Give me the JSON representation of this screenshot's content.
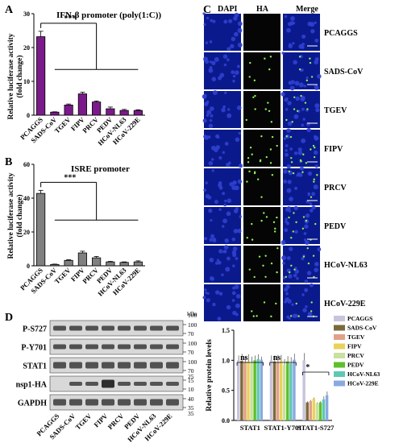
{
  "panels": {
    "A": "A",
    "B": "B",
    "C": "C",
    "D": "D"
  },
  "chart_data": [
    {
      "type": "bar",
      "title": "IFN-β promoter (poly(1:C))",
      "ylabel": "Relative luciferase activity (fold change)",
      "ylabel_lines": [
        "Relative luciferase activity",
        "(fold change)"
      ],
      "categories": [
        "PCAGGS",
        "SADS-CoV",
        "TGEV",
        "FIPV",
        "PRCV",
        "PEDV",
        "HCoV-NL63",
        "HCoV-229E"
      ],
      "values": [
        23.2,
        0.9,
        3.0,
        6.3,
        3.9,
        1.9,
        1.4,
        1.4
      ],
      "errors": [
        1.6,
        0.1,
        0.3,
        0.5,
        0.3,
        0.5,
        0.3,
        0.2
      ],
      "ylim": [
        0,
        30
      ],
      "yticks": [
        "0",
        "10",
        "20",
        "30"
      ],
      "significance": "***",
      "color": "#7b1a8a"
    },
    {
      "type": "bar",
      "title": "ISRE promoter",
      "ylabel": "Relative luciferase activity (fold change)",
      "ylabel_lines": [
        "Relative luciferase activity",
        "(fold change)"
      ],
      "categories": [
        "PCAGGS",
        "SADS-CoV",
        "TGEV",
        "FIPV",
        "PRCV",
        "PEDV",
        "HCoV-NL63",
        "HCoV-229E"
      ],
      "values": [
        42.8,
        0.8,
        3.2,
        7.6,
        4.7,
        2.3,
        2.0,
        2.3
      ],
      "errors": [
        1.8,
        0.2,
        0.4,
        1.0,
        0.8,
        0.3,
        0.3,
        0.6
      ],
      "ylim": [
        0,
        60
      ],
      "yticks": [
        "0",
        "20",
        "40",
        "60"
      ],
      "significance": "***",
      "color": "#808080"
    },
    {
      "type": "bar",
      "ylabel": "Relative protein levels",
      "categories": [
        "STAT1",
        "STAT1-Y701",
        "STAT1-S727"
      ],
      "yticks": [
        "0.0",
        "0.5",
        "1.0",
        "1.5"
      ],
      "ylim": [
        0,
        1.5
      ],
      "legend_position": "right",
      "series": [
        {
          "name": "PCAGGS",
          "color": "#c9c3dc",
          "values": [
            1.0,
            1.0,
            1.0
          ],
          "errors": [
            0.08,
            0.08,
            0.12
          ]
        },
        {
          "name": "SADS-CoV",
          "color": "#7a6a3a",
          "values": [
            0.99,
            0.98,
            0.3
          ],
          "errors": [
            0.12,
            0.1,
            0.02
          ]
        },
        {
          "name": "TGEV",
          "color": "#e2a08a",
          "values": [
            0.97,
            0.97,
            0.32
          ],
          "errors": [
            0.1,
            0.12,
            0.02
          ]
        },
        {
          "name": "FIPV",
          "color": "#e9d25a",
          "values": [
            0.98,
            0.99,
            0.36
          ],
          "errors": [
            0.12,
            0.1,
            0.02
          ]
        },
        {
          "name": "PRCV",
          "color": "#c8e0a0",
          "values": [
            0.96,
            0.92,
            0.28
          ],
          "errors": [
            0.1,
            0.1,
            0.02
          ]
        },
        {
          "name": "PEDV",
          "color": "#5fbf2a",
          "values": [
            1.0,
            0.98,
            0.3
          ],
          "errors": [
            0.08,
            0.09,
            0.02
          ]
        },
        {
          "name": "HCoV-NL63",
          "color": "#5ec8b5",
          "values": [
            1.02,
            0.95,
            0.35
          ],
          "errors": [
            0.08,
            0.1,
            0.05
          ]
        },
        {
          "name": "HCoV-229E",
          "color": "#8aa9e0",
          "values": [
            1.01,
            1.01,
            0.42
          ],
          "errors": [
            0.05,
            0.1,
            0.06
          ]
        }
      ],
      "significance": [
        {
          "groups": "STAT1",
          "label": "ns"
        },
        {
          "groups": "STAT1-Y701",
          "label": "ns"
        },
        {
          "groups": "STAT1-S727",
          "label": "*"
        }
      ]
    }
  ],
  "microscopy": {
    "columns": [
      "DAPI",
      "HA",
      "Merge"
    ],
    "rows": [
      "PCAGGS",
      "SADS-CoV",
      "TGEV",
      "FIPV",
      "PRCV",
      "PEDV",
      "HCoV-NL63",
      "HCoV-229E"
    ]
  },
  "western": {
    "kda_label": "kDa",
    "blots": [
      {
        "label": "P-S727",
        "markers": [
          "100",
          "70"
        ]
      },
      {
        "label": "P-Y701",
        "markers": [
          "100",
          "70"
        ]
      },
      {
        "label": "STAT1",
        "markers": [
          "100",
          "70"
        ]
      },
      {
        "label": "nsp1-HA",
        "markers": [
          "15",
          "10"
        ]
      },
      {
        "label": "GAPDH",
        "markers": [
          "40",
          "35"
        ]
      }
    ],
    "top_markers": [
      "100"
    ],
    "lanes": [
      "PCAGGS",
      "SADS-CoV",
      "TGEV",
      "FIPV",
      "PRCV",
      "PEDV",
      "HCoV-NL63",
      "HCoV-229E"
    ],
    "extra_markers": {
      "between_2_3": "25",
      "below_last": "35"
    }
  }
}
